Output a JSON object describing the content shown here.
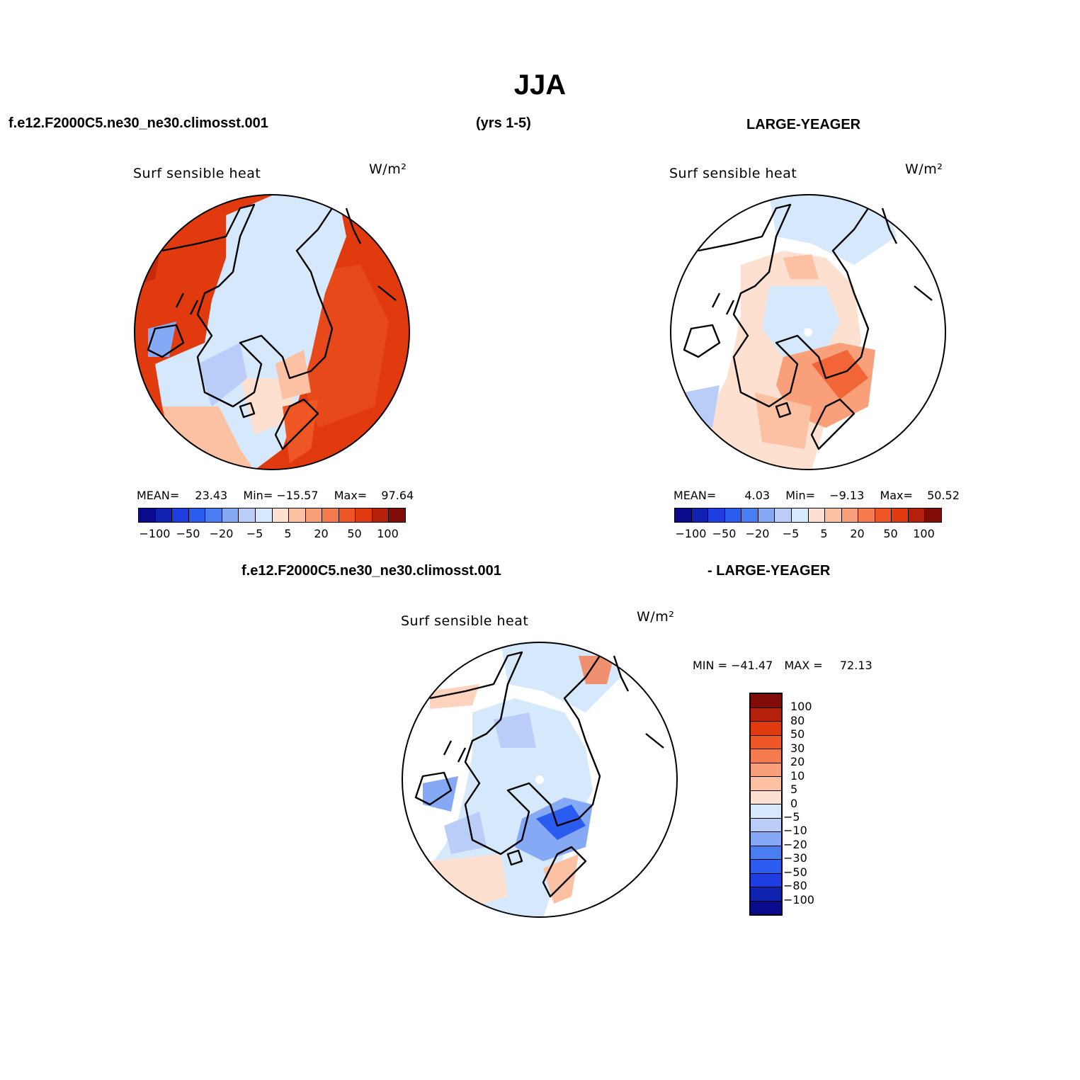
{
  "header": {
    "season": "JJA",
    "case_name": "f.e12.F2000C5.ne30_ne30.climosst.001",
    "years": "(yrs 1-5)",
    "obs_name": "LARGE-YEAGER",
    "diff_case_name": "f.e12.F2000C5.ne30_ne30.climosst.001",
    "diff_obs_name": "- LARGE-YEAGER"
  },
  "panels": [
    {
      "variable": "Surf  sensible  heat",
      "units": "W/m²",
      "stats": {
        "mean_label": "MEAN=",
        "mean": "23.43",
        "min_label": "Min=",
        "min": "−15.57",
        "max_label": "Max=",
        "max": "97.64"
      },
      "dominant_fill": "#e03a0e"
    },
    {
      "variable": "Surf  sensible  heat",
      "units": "W/m²",
      "stats": {
        "mean_label": "MEAN=",
        "mean": "4.03",
        "min_label": "Min=",
        "min": "−9.13",
        "max_label": "Max=",
        "max": "50.52"
      },
      "dominant_fill": "#fde0cf"
    },
    {
      "variable": "Surf  sensible  heat",
      "units": "W/m²",
      "stats": {
        "min_label": "MIN =",
        "min": "−41.47",
        "max_label": "MAX =",
        "max": "72.13"
      },
      "dominant_fill": "#d6e8fb"
    }
  ],
  "colorbar_h": {
    "colors": [
      "#0a0a8c",
      "#0f23b0",
      "#1e3de0",
      "#2a5cf0",
      "#4a7cf2",
      "#86a9f6",
      "#b9cdf8",
      "#d6e8fb",
      "#fde0cf",
      "#fcc0a2",
      "#f9a07b",
      "#f57a4e",
      "#ef5625",
      "#e03a0e",
      "#b5200a",
      "#820c08"
    ],
    "labels": [
      "−100",
      "−50",
      "−20",
      "−5",
      "5",
      "20",
      "50",
      "100"
    ]
  },
  "colorbar_v": {
    "colors": [
      "#820c08",
      "#b5200a",
      "#e03a0e",
      "#ef5625",
      "#f57a4e",
      "#f9a07b",
      "#fcc0a2",
      "#fde0cf",
      "#d6e8fb",
      "#b9cdf8",
      "#86a9f6",
      "#4a7cf2",
      "#2a5cf0",
      "#1e3de0",
      "#0f23b0",
      "#0a0a8c"
    ],
    "labels": [
      "100",
      "80",
      "50",
      "30",
      "20",
      "10",
      "5",
      "0",
      "−5",
      "−10",
      "−20",
      "−30",
      "−50",
      "−80",
      "−100"
    ]
  }
}
